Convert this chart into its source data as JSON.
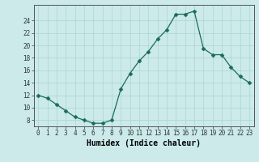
{
  "x": [
    0,
    1,
    2,
    3,
    4,
    5,
    6,
    7,
    8,
    9,
    10,
    11,
    12,
    13,
    14,
    15,
    16,
    17,
    18,
    19,
    20,
    21,
    22,
    23
  ],
  "y": [
    12,
    11.5,
    10.5,
    9.5,
    8.5,
    8,
    7.5,
    7.5,
    8,
    13,
    15.5,
    17.5,
    19,
    21,
    22.5,
    25,
    25,
    25.5,
    19.5,
    18.5,
    18.5,
    16.5,
    15,
    14
  ],
  "line_color": "#1a6b5a",
  "marker": "D",
  "marker_size": 2.5,
  "bg_color": "#cceaea",
  "grid_color": "#aad4d4",
  "xlabel": "Humidex (Indice chaleur)",
  "ylim": [
    7,
    26.5
  ],
  "xlim": [
    -0.5,
    23.5
  ],
  "yticks": [
    8,
    10,
    12,
    14,
    16,
    18,
    20,
    22,
    24
  ],
  "xticks": [
    0,
    1,
    2,
    3,
    4,
    5,
    6,
    7,
    8,
    9,
    10,
    11,
    12,
    13,
    14,
    15,
    16,
    17,
    18,
    19,
    20,
    21,
    22,
    23
  ],
  "tick_fontsize": 5.5,
  "xlabel_fontsize": 7.0
}
